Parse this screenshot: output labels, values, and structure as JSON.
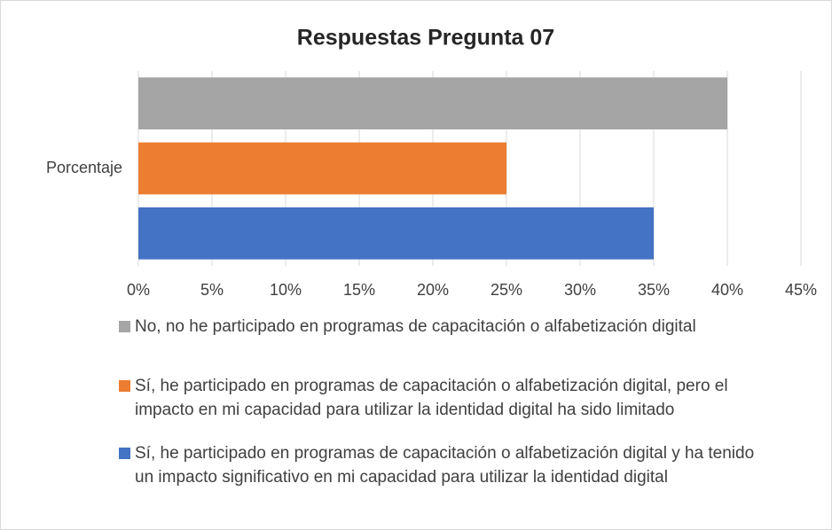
{
  "chart_data": {
    "type": "bar",
    "orientation": "horizontal",
    "title": "Respuestas Pregunta 07",
    "categories": [
      "Porcentaje"
    ],
    "series": [
      {
        "name": "No, no he participado en programas de capacitación o alfabetización digital",
        "color": "#a5a5a5",
        "values": [
          40
        ]
      },
      {
        "name": "Sí, he participado en programas de capacitación o alfabetización digital, pero el impacto en mi capacidad para utilizar la identidad digital ha sido limitado",
        "color": "#ed7d31",
        "values": [
          25
        ]
      },
      {
        "name": "Sí, he participado en programas de capacitación o alfabetización digital y ha tenido un impacto significativo en mi capacidad para utilizar la identidad digital",
        "color": "#4472c4",
        "values": [
          35
        ]
      }
    ],
    "xlim": [
      0,
      45
    ],
    "xticks": [
      {
        "value": 0,
        "label": "0%"
      },
      {
        "value": 5,
        "label": "5%"
      },
      {
        "value": 10,
        "label": "10%"
      },
      {
        "value": 15,
        "label": "15%"
      },
      {
        "value": 20,
        "label": "20%"
      },
      {
        "value": 25,
        "label": "25%"
      },
      {
        "value": 30,
        "label": "30%"
      },
      {
        "value": 35,
        "label": "35%"
      },
      {
        "value": 40,
        "label": "40%"
      },
      {
        "value": 45,
        "label": "45%"
      }
    ],
    "grid": true,
    "legend": "bottom"
  }
}
